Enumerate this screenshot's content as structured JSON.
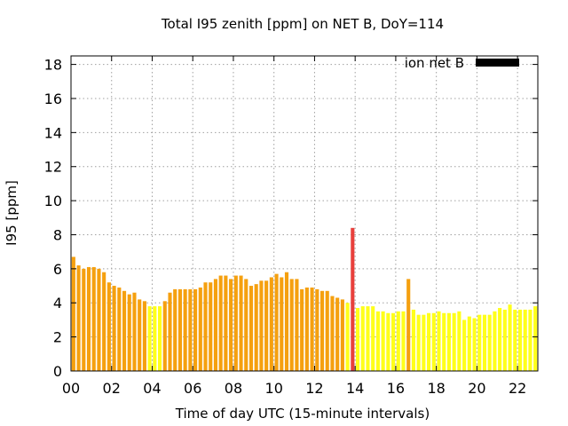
{
  "chart_data": {
    "type": "bar",
    "title": "Total I95 zenith [ppm] on NET B, DoY=114",
    "xlabel": "Time of day UTC (15-minute intervals)",
    "ylabel": "I95 [ppm]",
    "xlim": [
      0,
      23
    ],
    "ylim": [
      0,
      18.5
    ],
    "x_tick_labels": [
      "00",
      "02",
      "04",
      "06",
      "08",
      "10",
      "12",
      "14",
      "16",
      "18",
      "20",
      "22"
    ],
    "x_tick_values": [
      0,
      2,
      4,
      6,
      8,
      10,
      12,
      14,
      16,
      18,
      20,
      22
    ],
    "y_tick_values": [
      0,
      2,
      4,
      6,
      8,
      10,
      12,
      14,
      16,
      18
    ],
    "y_tick_labels": [
      "0",
      "2",
      "4",
      "6",
      "8",
      "10",
      "12",
      "14",
      "16",
      "18"
    ],
    "grid": true,
    "legend": {
      "label": "ion net B",
      "color": "#000000",
      "position": "top-right"
    },
    "interval_hours": 0.25,
    "colors": {
      "O": "#f5a00f",
      "Y": "#ffff1a",
      "R": "#e8403c"
    },
    "series": [
      {
        "name": "ion net B",
        "values": [
          6.7,
          6.2,
          6.0,
          6.1,
          6.1,
          6.0,
          5.8,
          5.2,
          5.0,
          4.9,
          4.7,
          4.5,
          4.6,
          4.2,
          4.1,
          3.8,
          3.8,
          3.8,
          4.1,
          4.6,
          4.8,
          4.8,
          4.8,
          4.8,
          4.8,
          4.9,
          5.2,
          5.2,
          5.4,
          5.6,
          5.6,
          5.4,
          5.6,
          5.6,
          5.4,
          5.0,
          5.1,
          5.3,
          5.3,
          5.5,
          5.7,
          5.5,
          5.8,
          5.4,
          5.4,
          4.8,
          4.9,
          4.9,
          4.8,
          4.7,
          4.7,
          4.4,
          4.3,
          4.2,
          4.0,
          8.4,
          3.7,
          3.8,
          3.8,
          3.8,
          3.5,
          3.5,
          3.4,
          3.4,
          3.5,
          3.5,
          5.4,
          3.6,
          3.3,
          3.3,
          3.4,
          3.4,
          3.5,
          3.4,
          3.4,
          3.4,
          3.5,
          3.0,
          3.2,
          3.1,
          3.3,
          3.3,
          3.3,
          3.5,
          3.7,
          3.6,
          3.9,
          3.6,
          3.6,
          3.6,
          3.6,
          3.8
        ],
        "color_codes": [
          "O",
          "O",
          "O",
          "O",
          "O",
          "O",
          "O",
          "O",
          "O",
          "O",
          "O",
          "O",
          "O",
          "O",
          "O",
          "Y",
          "Y",
          "Y",
          "O",
          "O",
          "O",
          "O",
          "O",
          "O",
          "O",
          "O",
          "O",
          "O",
          "O",
          "O",
          "O",
          "O",
          "O",
          "O",
          "O",
          "O",
          "O",
          "O",
          "O",
          "O",
          "O",
          "O",
          "O",
          "O",
          "O",
          "O",
          "O",
          "O",
          "O",
          "O",
          "O",
          "O",
          "O",
          "O",
          "Y",
          "R",
          "Y",
          "Y",
          "Y",
          "Y",
          "Y",
          "Y",
          "Y",
          "Y",
          "Y",
          "Y",
          "O",
          "Y",
          "Y",
          "Y",
          "Y",
          "Y",
          "Y",
          "Y",
          "Y",
          "Y",
          "Y",
          "Y",
          "Y",
          "Y",
          "Y",
          "Y",
          "Y",
          "Y",
          "Y",
          "Y",
          "Y",
          "Y",
          "Y",
          "Y",
          "Y",
          "Y"
        ]
      }
    ]
  }
}
